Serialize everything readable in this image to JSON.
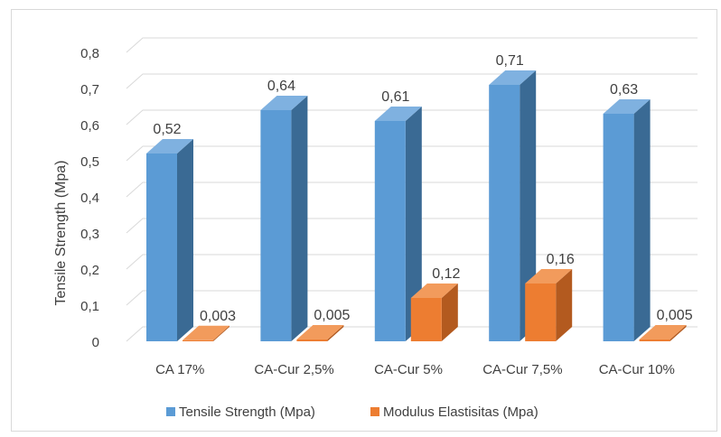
{
  "chart_data": {
    "type": "bar",
    "categories": [
      "CA 17%",
      "CA-Cur 2,5%",
      "CA-Cur 5%",
      "CA-Cur 7,5%",
      "CA-Cur 10%"
    ],
    "series": [
      {
        "name": "Tensile Strength (Mpa)",
        "values": [
          0.52,
          0.64,
          0.61,
          0.71,
          0.63
        ],
        "labels": [
          "0,52",
          "0,64",
          "0,61",
          "0,71",
          "0,63"
        ]
      },
      {
        "name": "Modulus Elastisitas (Mpa)",
        "values": [
          0.003,
          0.005,
          0.12,
          0.16,
          0.005
        ],
        "labels": [
          "0,003",
          "0,005",
          "0,12",
          "0,16",
          "0,005"
        ]
      }
    ],
    "ylabel": "Tensile Strength (Mpa)",
    "xlabel": "",
    "ylim": [
      0,
      0.8
    ],
    "yticks": [
      "0",
      "0,1",
      "0,2",
      "0,3",
      "0,4",
      "0,5",
      "0,6",
      "0,7",
      "0,8"
    ],
    "grid": true,
    "legend": "bottom",
    "colors": {
      "series0_front": "#5b9bd5",
      "series0_side": "#3a6a94",
      "series0_top": "#7fb1e0",
      "series1_front": "#ed7d31",
      "series1_side": "#b35a1f",
      "series1_top": "#f29b5c",
      "grid": "#d9d9d9"
    }
  }
}
